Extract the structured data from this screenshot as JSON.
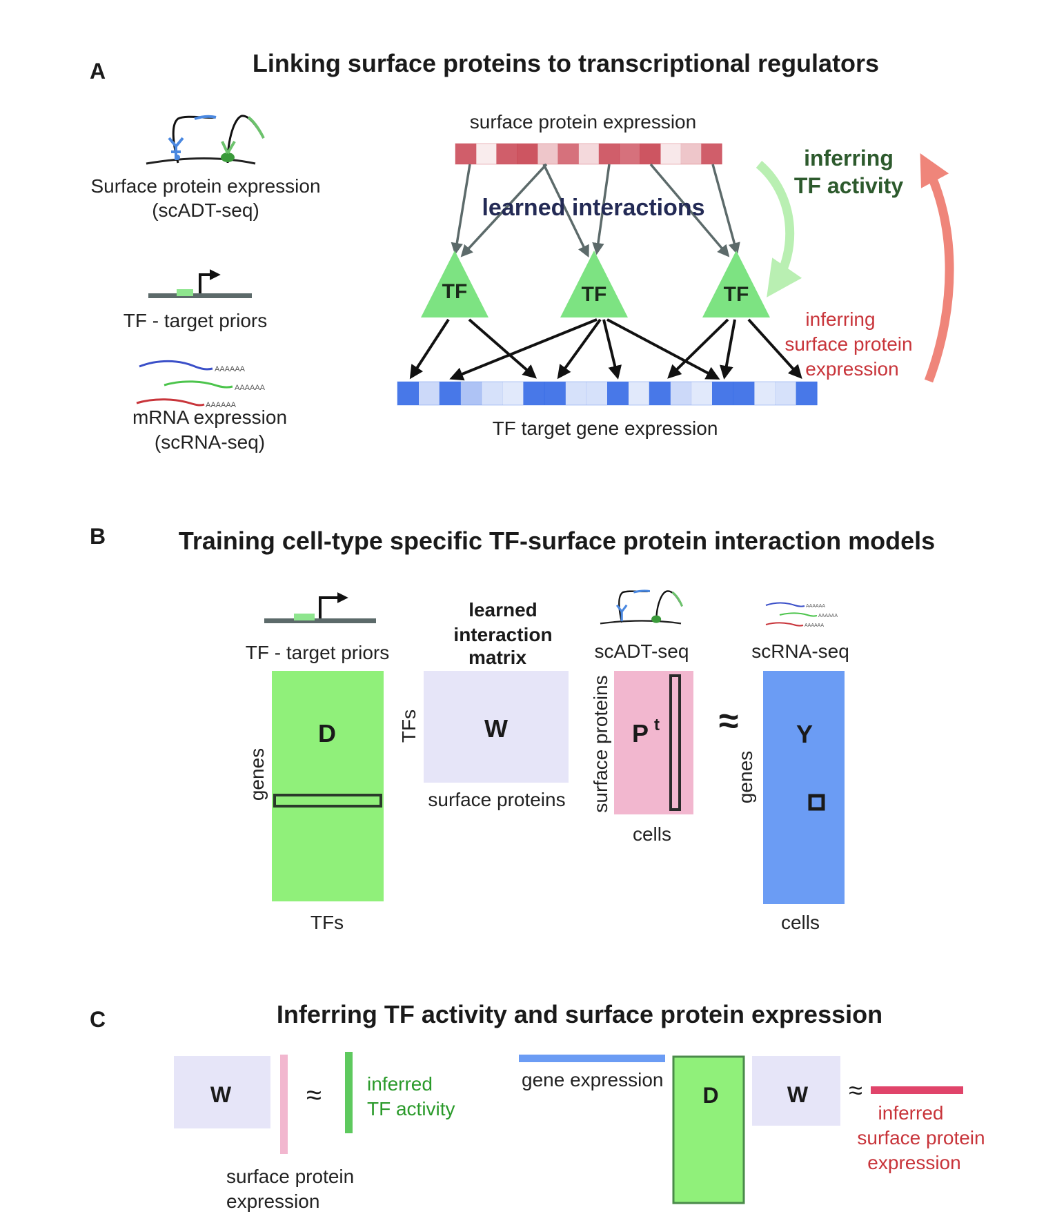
{
  "colors": {
    "red": "#c84250",
    "blue": "#3469e6",
    "green": "#7de382",
    "lavender": "#e6e5f8",
    "pink": "#f2b7cf",
    "green_text": "#2a7a2a",
    "dark_green_text": "#2d5a2d",
    "red_text": "#c8343a",
    "light_green_arrow": "#b9efb2",
    "salmon_arrow": "#ef857a"
  },
  "panel_a": {
    "letter": "A",
    "title": "Linking surface proteins to transcriptional regulators",
    "icons": {
      "adt_label_1": "Surface protein expression",
      "adt_label_2": "(scADT-seq)",
      "prior_label": "TF - target priors",
      "poly_a": "AAAAAA",
      "mrna_label_1": "mRNA expression",
      "mrna_label_2": "(scRNA-seq)"
    },
    "network": {
      "surface_label": "surface protein expression",
      "learned_label": "learned interactions",
      "tf_label": "TF",
      "target_label": "TF target gene expression",
      "inferring_tf_1": "inferring",
      "inferring_tf_2": "TF activity",
      "inferring_sp_1": "inferring",
      "inferring_sp_2": "surface protein",
      "inferring_sp_3": "expression",
      "surface_levels": [
        0.85,
        0.1,
        0.85,
        0.9,
        0.3,
        0.75,
        0.2,
        0.85,
        0.75,
        0.9,
        0.12,
        0.3,
        0.85
      ],
      "target_levels": [
        0.9,
        0.25,
        0.9,
        0.4,
        0.2,
        0.15,
        0.9,
        0.9,
        0.2,
        0.2,
        0.9,
        0.15,
        0.9,
        0.25,
        0.15,
        0.9,
        0.9,
        0.15,
        0.2,
        0.9
      ]
    }
  },
  "panel_b": {
    "letter": "B",
    "title": "Training cell-type specific TF-surface protein interaction models",
    "priors_label": "TF - target priors",
    "D_label": "D",
    "genes_label": "genes",
    "tfs_bottom_label": "TFs",
    "W_heading_1": "learned",
    "W_heading_2": "interaction",
    "W_heading_3": "matrix",
    "W_label": "W",
    "tfs_side_label": "TFs",
    "surface_proteins_label": "surface proteins",
    "adt_label": "scADT-seq",
    "P_label": "P",
    "P_sup": "t",
    "surface_proteins_side": "surface proteins",
    "cells_label_P": "cells",
    "approx": "≈",
    "rna_label": "scRNA-seq",
    "Y_label": "Y",
    "genes_side_Y": "genes",
    "cells_label_Y": "cells"
  },
  "panel_c": {
    "letter": "C",
    "title": "Inferring TF activity and surface protein expression",
    "W_label": "W",
    "approx": "≈",
    "inferred_tf_1": "inferred",
    "inferred_tf_2": "TF activity",
    "surface_protein_1": "surface protein",
    "surface_protein_2": "expression",
    "gene_expression": "gene expression",
    "D_label": "D",
    "W2_label": "W",
    "approx2": "≈",
    "inferred_sp_1": "inferred",
    "inferred_sp_2": "surface protein",
    "inferred_sp_3": "expression"
  }
}
